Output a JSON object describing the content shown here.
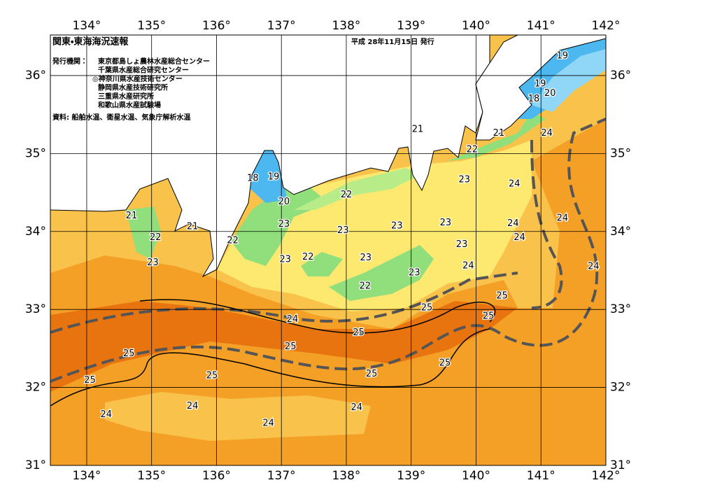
{
  "header": {
    "title": "関東・東海海況速報",
    "date": "平成 28年11月15日 発行"
  },
  "publishers": {
    "label": "発行機関：",
    "items": [
      "東京都島しょ農林水産総合センター",
      "千葉県水産総合研究センター",
      "◎神奈川県水産技術センター",
      "静岡県水産技術研究所",
      "三重県水産研究所",
      "和歌山県水産試験場"
    ]
  },
  "sources": "資料: 船舶水温、衛星水温、気象庁解析水温",
  "map": {
    "lon_range": [
      133.44,
      142
    ],
    "lat_range": [
      31,
      36.52
    ],
    "lon_ticks": [
      {
        "value": 134,
        "label": "134°"
      },
      {
        "value": 135,
        "label": "135°"
      },
      {
        "value": 136,
        "label": "136°"
      },
      {
        "value": 137,
        "label": "137°"
      },
      {
        "value": 138,
        "label": "138°"
      },
      {
        "value": 139,
        "label": "139°"
      },
      {
        "value": 140,
        "label": "140°"
      },
      {
        "value": 141,
        "label": "141°"
      },
      {
        "value": 142,
        "label": "142°"
      }
    ],
    "lat_ticks": [
      {
        "value": 31,
        "label": "31°"
      },
      {
        "value": 32,
        "label": "32°"
      },
      {
        "value": 33,
        "label": "33°"
      },
      {
        "value": 34,
        "label": "34°"
      },
      {
        "value": 35,
        "label": "35°"
      },
      {
        "value": 36,
        "label": "36°"
      }
    ],
    "contour_labels": [
      {
        "value": 19,
        "lon": 141.33,
        "lat": 36.25
      },
      {
        "value": 19,
        "lon": 140.99,
        "lat": 35.89
      },
      {
        "value": 20,
        "lon": 141.14,
        "lat": 35.77
      },
      {
        "value": 18,
        "lon": 140.89,
        "lat": 35.7
      },
      {
        "value": 21,
        "lon": 139.1,
        "lat": 35.31
      },
      {
        "value": 21,
        "lon": 140.35,
        "lat": 35.26
      },
      {
        "value": 24,
        "lon": 141.09,
        "lat": 35.26
      },
      {
        "value": 22,
        "lon": 139.94,
        "lat": 35.05
      },
      {
        "value": 18,
        "lon": 136.56,
        "lat": 34.68
      },
      {
        "value": 19,
        "lon": 136.88,
        "lat": 34.7
      },
      {
        "value": 23,
        "lon": 139.82,
        "lat": 34.66
      },
      {
        "value": 24,
        "lon": 140.59,
        "lat": 34.61
      },
      {
        "value": 22,
        "lon": 138.0,
        "lat": 34.47
      },
      {
        "value": 20,
        "lon": 137.04,
        "lat": 34.38
      },
      {
        "value": 21,
        "lon": 134.69,
        "lat": 34.2
      },
      {
        "value": 21,
        "lon": 135.63,
        "lat": 34.06
      },
      {
        "value": 24,
        "lon": 141.33,
        "lat": 34.17
      },
      {
        "value": 23,
        "lon": 137.04,
        "lat": 34.09
      },
      {
        "value": 23,
        "lon": 137.95,
        "lat": 34.01
      },
      {
        "value": 23,
        "lon": 138.78,
        "lat": 34.07
      },
      {
        "value": 23,
        "lon": 139.53,
        "lat": 34.11
      },
      {
        "value": 24,
        "lon": 140.57,
        "lat": 34.1
      },
      {
        "value": 22,
        "lon": 135.06,
        "lat": 33.92
      },
      {
        "value": 22,
        "lon": 136.25,
        "lat": 33.88
      },
      {
        "value": 24,
        "lon": 140.67,
        "lat": 33.92
      },
      {
        "value": 23,
        "lon": 139.78,
        "lat": 33.83
      },
      {
        "value": 22,
        "lon": 137.41,
        "lat": 33.67
      },
      {
        "value": 23,
        "lon": 138.3,
        "lat": 33.66
      },
      {
        "value": 23,
        "lon": 137.06,
        "lat": 33.64
      },
      {
        "value": 23,
        "lon": 135.02,
        "lat": 33.6
      },
      {
        "value": 24,
        "lon": 139.88,
        "lat": 33.56
      },
      {
        "value": 24,
        "lon": 141.81,
        "lat": 33.55
      },
      {
        "value": 23,
        "lon": 139.05,
        "lat": 33.47
      },
      {
        "value": 22,
        "lon": 138.29,
        "lat": 33.3
      },
      {
        "value": 25,
        "lon": 140.4,
        "lat": 33.17
      },
      {
        "value": 25,
        "lon": 139.24,
        "lat": 33.02
      },
      {
        "value": 25,
        "lon": 140.19,
        "lat": 32.91
      },
      {
        "value": 24,
        "lon": 137.17,
        "lat": 32.87
      },
      {
        "value": 25,
        "lon": 138.19,
        "lat": 32.7
      },
      {
        "value": 25,
        "lon": 137.14,
        "lat": 32.52
      },
      {
        "value": 25,
        "lon": 134.65,
        "lat": 32.43
      },
      {
        "value": 25,
        "lon": 139.52,
        "lat": 32.31
      },
      {
        "value": 25,
        "lon": 135.93,
        "lat": 32.15
      },
      {
        "value": 25,
        "lon": 138.39,
        "lat": 32.17
      },
      {
        "value": 25,
        "lon": 134.05,
        "lat": 32.09
      },
      {
        "value": 24,
        "lon": 135.63,
        "lat": 31.76
      },
      {
        "value": 24,
        "lon": 138.16,
        "lat": 31.74
      },
      {
        "value": 24,
        "lon": 134.3,
        "lat": 31.65
      },
      {
        "value": 24,
        "lon": 136.8,
        "lat": 31.54
      }
    ]
  }
}
